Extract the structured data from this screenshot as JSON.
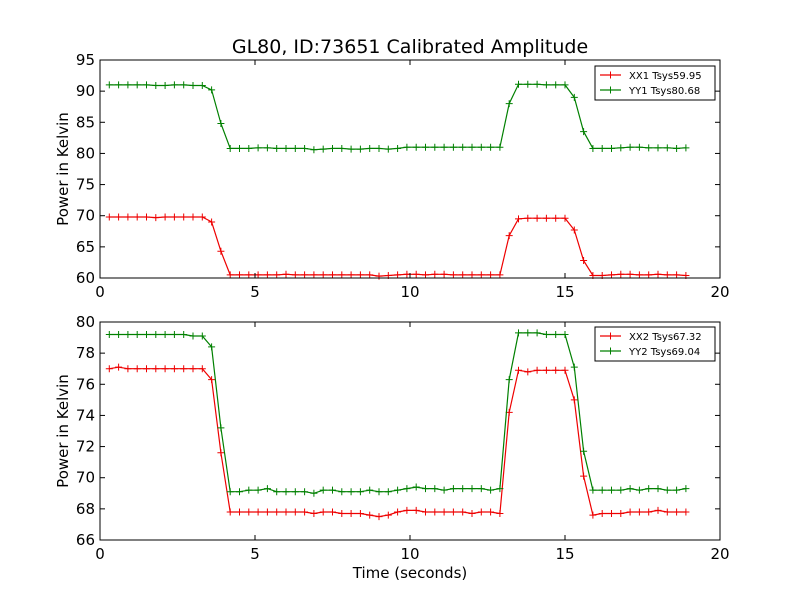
{
  "figure_title": "GL80, ID:73651 Calibrated Amplitude",
  "colors": {
    "red": "#ee0000",
    "green": "#008000",
    "axis": "#000000"
  },
  "chart_data": [
    {
      "type": "line",
      "title": "GL80, ID:73651 Calibrated Amplitude",
      "xlabel": "",
      "ylabel": "Power in Kelvin",
      "xlim": [
        0,
        20
      ],
      "ylim": [
        60,
        95
      ],
      "xticks": [
        0,
        5,
        10,
        15,
        20
      ],
      "yticks": [
        60,
        65,
        70,
        75,
        80,
        85,
        90,
        95
      ],
      "grid": false,
      "legend": "top-right",
      "x": [
        0.3,
        0.6,
        0.9,
        1.2,
        1.5,
        1.8,
        2.1,
        2.4,
        2.7,
        3.0,
        3.3,
        3.6,
        3.9,
        4.2,
        4.5,
        4.8,
        5.1,
        5.4,
        5.7,
        6.0,
        6.3,
        6.6,
        6.9,
        7.2,
        7.5,
        7.8,
        8.1,
        8.4,
        8.7,
        9.0,
        9.3,
        9.6,
        9.9,
        10.2,
        10.5,
        10.8,
        11.1,
        11.4,
        11.7,
        12.0,
        12.3,
        12.6,
        12.9,
        13.2,
        13.5,
        13.8,
        14.1,
        14.4,
        14.7,
        15.0,
        15.3,
        15.6,
        15.9,
        16.2,
        16.5,
        16.8,
        17.1,
        17.4,
        17.7,
        18.0,
        18.3,
        18.6,
        18.9
      ],
      "series": [
        {
          "name": "XX1 Tsys59.95",
          "color": "#ee0000",
          "values": [
            69.8,
            69.8,
            69.8,
            69.8,
            69.8,
            69.7,
            69.8,
            69.8,
            69.8,
            69.8,
            69.8,
            69.0,
            64.3,
            60.5,
            60.5,
            60.5,
            60.5,
            60.5,
            60.5,
            60.6,
            60.5,
            60.5,
            60.5,
            60.5,
            60.5,
            60.5,
            60.5,
            60.5,
            60.5,
            60.3,
            60.4,
            60.5,
            60.6,
            60.6,
            60.5,
            60.6,
            60.6,
            60.5,
            60.5,
            60.5,
            60.5,
            60.5,
            60.5,
            66.8,
            69.5,
            69.6,
            69.6,
            69.6,
            69.6,
            69.6,
            67.7,
            62.8,
            60.4,
            60.4,
            60.5,
            60.6,
            60.6,
            60.5,
            60.5,
            60.6,
            60.5,
            60.5,
            60.4
          ]
        },
        {
          "name": "YY1 Tsys80.68",
          "color": "#008000",
          "values": [
            91.0,
            91.0,
            91.0,
            91.0,
            91.0,
            90.9,
            90.9,
            91.0,
            91.0,
            90.9,
            90.9,
            90.2,
            84.8,
            80.8,
            80.8,
            80.8,
            80.9,
            80.9,
            80.8,
            80.8,
            80.8,
            80.8,
            80.6,
            80.7,
            80.8,
            80.8,
            80.7,
            80.7,
            80.8,
            80.8,
            80.7,
            80.8,
            81.0,
            81.0,
            81.0,
            81.0,
            81.0,
            81.0,
            81.0,
            81.0,
            81.0,
            81.0,
            81.0,
            88.0,
            91.1,
            91.1,
            91.1,
            91.0,
            91.0,
            91.0,
            89.0,
            83.5,
            80.8,
            80.8,
            80.8,
            80.9,
            81.0,
            81.0,
            80.9,
            80.9,
            80.9,
            80.8,
            80.9
          ]
        }
      ]
    },
    {
      "type": "line",
      "title": "",
      "xlabel": "Time (seconds)",
      "ylabel": "Power in Kelvin",
      "xlim": [
        0,
        20
      ],
      "ylim": [
        66,
        80
      ],
      "xticks": [
        0,
        5,
        10,
        15,
        20
      ],
      "yticks": [
        66,
        68,
        70,
        72,
        74,
        76,
        78,
        80
      ],
      "grid": false,
      "legend": "top-right",
      "x": [
        0.3,
        0.6,
        0.9,
        1.2,
        1.5,
        1.8,
        2.1,
        2.4,
        2.7,
        3.0,
        3.3,
        3.6,
        3.9,
        4.2,
        4.5,
        4.8,
        5.1,
        5.4,
        5.7,
        6.0,
        6.3,
        6.6,
        6.9,
        7.2,
        7.5,
        7.8,
        8.1,
        8.4,
        8.7,
        9.0,
        9.3,
        9.6,
        9.9,
        10.2,
        10.5,
        10.8,
        11.1,
        11.4,
        11.7,
        12.0,
        12.3,
        12.6,
        12.9,
        13.2,
        13.5,
        13.8,
        14.1,
        14.4,
        14.7,
        15.0,
        15.3,
        15.6,
        15.9,
        16.2,
        16.5,
        16.8,
        17.1,
        17.4,
        17.7,
        18.0,
        18.3,
        18.6,
        18.9
      ],
      "series": [
        {
          "name": "XX2 Tsys67.32",
          "color": "#ee0000",
          "values": [
            77.0,
            77.1,
            77.0,
            77.0,
            77.0,
            77.0,
            77.0,
            77.0,
            77.0,
            77.0,
            77.0,
            76.3,
            71.6,
            67.8,
            67.8,
            67.8,
            67.8,
            67.8,
            67.8,
            67.8,
            67.8,
            67.8,
            67.7,
            67.8,
            67.8,
            67.7,
            67.7,
            67.7,
            67.6,
            67.5,
            67.6,
            67.8,
            67.9,
            67.9,
            67.8,
            67.8,
            67.8,
            67.8,
            67.8,
            67.7,
            67.8,
            67.8,
            67.7,
            74.2,
            76.9,
            76.8,
            76.9,
            76.9,
            76.9,
            76.9,
            75.0,
            70.1,
            67.6,
            67.7,
            67.7,
            67.7,
            67.8,
            67.8,
            67.8,
            67.9,
            67.8,
            67.8,
            67.8
          ]
        },
        {
          "name": "YY2 Tsys69.04",
          "color": "#008000",
          "values": [
            79.2,
            79.2,
            79.2,
            79.2,
            79.2,
            79.2,
            79.2,
            79.2,
            79.2,
            79.1,
            79.1,
            78.4,
            73.2,
            69.1,
            69.1,
            69.2,
            69.2,
            69.3,
            69.1,
            69.1,
            69.1,
            69.1,
            69.0,
            69.2,
            69.2,
            69.1,
            69.1,
            69.1,
            69.2,
            69.1,
            69.1,
            69.2,
            69.3,
            69.4,
            69.3,
            69.3,
            69.2,
            69.3,
            69.3,
            69.3,
            69.3,
            69.2,
            69.3,
            76.3,
            79.3,
            79.3,
            79.3,
            79.2,
            79.2,
            79.2,
            77.1,
            71.7,
            69.2,
            69.2,
            69.2,
            69.2,
            69.3,
            69.2,
            69.3,
            69.3,
            69.2,
            69.2,
            69.3
          ]
        }
      ]
    }
  ]
}
